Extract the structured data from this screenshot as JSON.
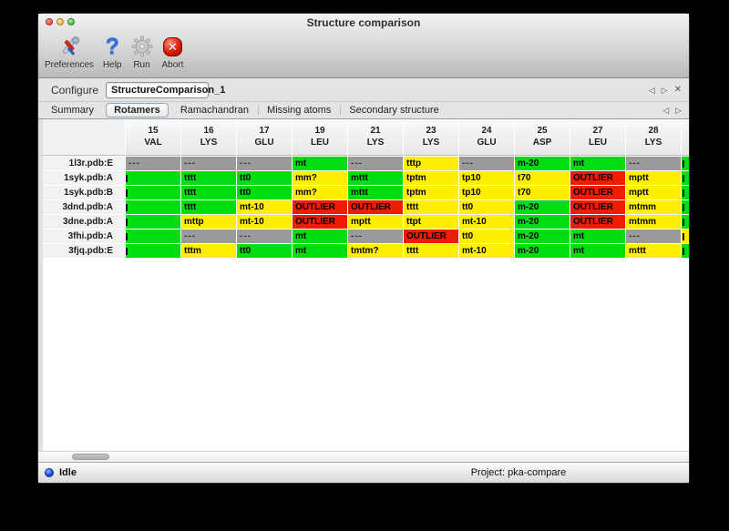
{
  "window": {
    "title": "Structure comparison"
  },
  "toolbar": {
    "items": [
      {
        "label": "Preferences",
        "icon": "tools-icon"
      },
      {
        "label": "Help",
        "icon": "question-mark-icon"
      },
      {
        "label": "Run",
        "icon": "gear-icon"
      },
      {
        "label": "Abort",
        "icon": "abort-icon"
      }
    ]
  },
  "configure": {
    "label": "Configure",
    "value": "StructureComparison_1"
  },
  "nav": {
    "prev": "◁",
    "next": "▷",
    "close": "✕"
  },
  "tabs": {
    "items": [
      {
        "label": "Summary",
        "selected": false
      },
      {
        "label": "Rotamers",
        "selected": true
      },
      {
        "label": "Ramachandran",
        "selected": false
      },
      {
        "label": "Missing atoms",
        "selected": false
      },
      {
        "label": "Secondary structure",
        "selected": false
      }
    ]
  },
  "colors": {
    "green": "#00dd11",
    "yellow": "#ffee00",
    "red": "#ee1c00",
    "gray": "#9a9a9a"
  },
  "table": {
    "columns": [
      {
        "num": "15",
        "res": "VAL"
      },
      {
        "num": "16",
        "res": "LYS"
      },
      {
        "num": "17",
        "res": "GLU"
      },
      {
        "num": "19",
        "res": "LEU"
      },
      {
        "num": "21",
        "res": "LYS"
      },
      {
        "num": "23",
        "res": "LYS"
      },
      {
        "num": "24",
        "res": "GLU"
      },
      {
        "num": "25",
        "res": "ASP"
      },
      {
        "num": "27",
        "res": "LEU"
      },
      {
        "num": "28",
        "res": "LYS"
      }
    ],
    "rows": [
      {
        "label": "1l3r.pdb:E",
        "edge": "green",
        "cells": [
          {
            "v": "---",
            "c": "gray"
          },
          {
            "v": "---",
            "c": "gray"
          },
          {
            "v": "---",
            "c": "gray"
          },
          {
            "v": "mt",
            "c": "green"
          },
          {
            "v": "---",
            "c": "gray"
          },
          {
            "v": "tttp",
            "c": "yellow"
          },
          {
            "v": "---",
            "c": "gray"
          },
          {
            "v": "m-20",
            "c": "green"
          },
          {
            "v": "mt",
            "c": "green"
          },
          {
            "v": "---",
            "c": "gray"
          }
        ]
      },
      {
        "label": "1syk.pdb:A",
        "edge": "green",
        "cells": [
          {
            "v": "",
            "c": "green",
            "t": 1
          },
          {
            "v": "tttt",
            "c": "green"
          },
          {
            "v": "tt0",
            "c": "green"
          },
          {
            "v": "mm?",
            "c": "yellow"
          },
          {
            "v": "mttt",
            "c": "green"
          },
          {
            "v": "tptm",
            "c": "yellow"
          },
          {
            "v": "tp10",
            "c": "yellow"
          },
          {
            "v": "t70",
            "c": "yellow"
          },
          {
            "v": "OUTLIER",
            "c": "red"
          },
          {
            "v": "mptt",
            "c": "yellow"
          }
        ]
      },
      {
        "label": "1syk.pdb:B",
        "edge": "green",
        "cells": [
          {
            "v": "",
            "c": "green",
            "t": 1
          },
          {
            "v": "tttt",
            "c": "green"
          },
          {
            "v": "tt0",
            "c": "green"
          },
          {
            "v": "mm?",
            "c": "yellow"
          },
          {
            "v": "mttt",
            "c": "green"
          },
          {
            "v": "tptm",
            "c": "yellow"
          },
          {
            "v": "tp10",
            "c": "yellow"
          },
          {
            "v": "t70",
            "c": "yellow"
          },
          {
            "v": "OUTLIER",
            "c": "red"
          },
          {
            "v": "mptt",
            "c": "yellow"
          }
        ]
      },
      {
        "label": "3dnd.pdb:A",
        "edge": "green",
        "cells": [
          {
            "v": "",
            "c": "green",
            "t": 1
          },
          {
            "v": "tttt",
            "c": "green"
          },
          {
            "v": "mt-10",
            "c": "yellow"
          },
          {
            "v": "OUTLIER",
            "c": "red"
          },
          {
            "v": "OUTLIER",
            "c": "red"
          },
          {
            "v": "tttt",
            "c": "yellow"
          },
          {
            "v": "tt0",
            "c": "yellow"
          },
          {
            "v": "m-20",
            "c": "green"
          },
          {
            "v": "OUTLIER",
            "c": "red"
          },
          {
            "v": "mtmm",
            "c": "yellow"
          }
        ]
      },
      {
        "label": "3dne.pdb:A",
        "edge": "green",
        "cells": [
          {
            "v": "",
            "c": "green",
            "t": 1
          },
          {
            "v": "mttp",
            "c": "yellow"
          },
          {
            "v": "mt-10",
            "c": "yellow"
          },
          {
            "v": "OUTLIER",
            "c": "red"
          },
          {
            "v": "mptt",
            "c": "yellow"
          },
          {
            "v": "ttpt",
            "c": "yellow"
          },
          {
            "v": "mt-10",
            "c": "yellow"
          },
          {
            "v": "m-20",
            "c": "green"
          },
          {
            "v": "OUTLIER",
            "c": "red"
          },
          {
            "v": "mtmm",
            "c": "yellow"
          }
        ]
      },
      {
        "label": "3fhi.pdb:A",
        "edge": "yellow",
        "cells": [
          {
            "v": "",
            "c": "green",
            "t": 1
          },
          {
            "v": "---",
            "c": "gray"
          },
          {
            "v": "---",
            "c": "gray"
          },
          {
            "v": "mt",
            "c": "green"
          },
          {
            "v": "---",
            "c": "gray"
          },
          {
            "v": "OUTLIER",
            "c": "red"
          },
          {
            "v": "tt0",
            "c": "yellow"
          },
          {
            "v": "m-20",
            "c": "green"
          },
          {
            "v": "mt",
            "c": "green"
          },
          {
            "v": "---",
            "c": "gray"
          }
        ]
      },
      {
        "label": "3fjq.pdb:E",
        "edge": "green",
        "cells": [
          {
            "v": "",
            "c": "green",
            "t": 1
          },
          {
            "v": "tttm",
            "c": "yellow"
          },
          {
            "v": "tt0",
            "c": "green"
          },
          {
            "v": "mt",
            "c": "green"
          },
          {
            "v": "tmtm?",
            "c": "yellow"
          },
          {
            "v": "tttt",
            "c": "yellow"
          },
          {
            "v": "mt-10",
            "c": "yellow"
          },
          {
            "v": "m-20",
            "c": "green"
          },
          {
            "v": "mt",
            "c": "green"
          },
          {
            "v": "mttt",
            "c": "yellow"
          }
        ]
      }
    ]
  },
  "status": {
    "state": "Idle",
    "project": "Project: pka-compare"
  }
}
